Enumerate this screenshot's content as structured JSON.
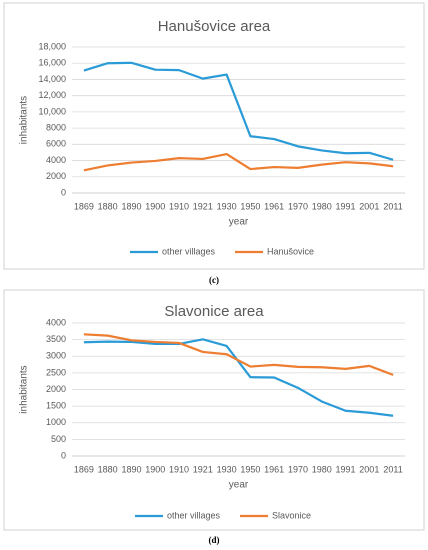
{
  "chart_data": [
    {
      "type": "line",
      "title": "Hanušovice area",
      "caption": "(c)",
      "x_label": "year",
      "y_label": "inhabitants",
      "categories": [
        "1869",
        "1880",
        "1890",
        "1900",
        "1910",
        "1921",
        "1930",
        "1950",
        "1961",
        "1970",
        "1980",
        "1991",
        "2001",
        "2011"
      ],
      "series": [
        {
          "name": "other villages",
          "color": "#2a9bd7",
          "values": [
            15100,
            16000,
            16050,
            15200,
            15150,
            14100,
            14600,
            7000,
            6650,
            5750,
            5250,
            4900,
            4950,
            4100
          ]
        },
        {
          "name": "Hanušovice",
          "color": "#ed7d31",
          "values": [
            2800,
            3400,
            3750,
            3950,
            4300,
            4200,
            4800,
            2950,
            3200,
            3100,
            3500,
            3800,
            3650,
            3300
          ]
        }
      ],
      "ylim": [
        0,
        18000
      ],
      "yticks": [
        0,
        {
          "value": 2000,
          "label": "2000"
        },
        {
          "value": 4000,
          "label": "4000"
        },
        {
          "value": 6000,
          "label": "6000"
        },
        {
          "value": 8000,
          "label": "8000"
        },
        {
          "value": 10000,
          "label": "10,000"
        },
        {
          "value": 12000,
          "label": "12,000"
        },
        {
          "value": 14000,
          "label": "14,000"
        },
        {
          "value": 16000,
          "label": "16,000"
        },
        {
          "value": 18000,
          "label": "18,000"
        }
      ],
      "grid": true,
      "legend": "bottom"
    },
    {
      "type": "line",
      "title": "Slavonice area",
      "caption": "(d)",
      "x_label": "year",
      "y_label": "inhabitants",
      "categories": [
        "1869",
        "1880",
        "1890",
        "1900",
        "1910",
        "1921",
        "1930",
        "1950",
        "1961",
        "1970",
        "1980",
        "1991",
        "2001",
        "2011"
      ],
      "series": [
        {
          "name": "other villages",
          "color": "#2a9bd7",
          "values": [
            3420,
            3440,
            3430,
            3370,
            3370,
            3510,
            3310,
            2370,
            2360,
            2050,
            1640,
            1360,
            1300,
            1210
          ]
        },
        {
          "name": "Slavonice",
          "color": "#ed7d31",
          "values": [
            3660,
            3620,
            3480,
            3430,
            3400,
            3130,
            3060,
            2690,
            2740,
            2680,
            2670,
            2620,
            2710,
            2440
          ]
        }
      ],
      "ylim": [
        0,
        4000
      ],
      "yticks": [
        0,
        500,
        1000,
        1500,
        2000,
        2500,
        3000,
        3500,
        4000
      ],
      "grid": true,
      "legend": "bottom"
    }
  ]
}
